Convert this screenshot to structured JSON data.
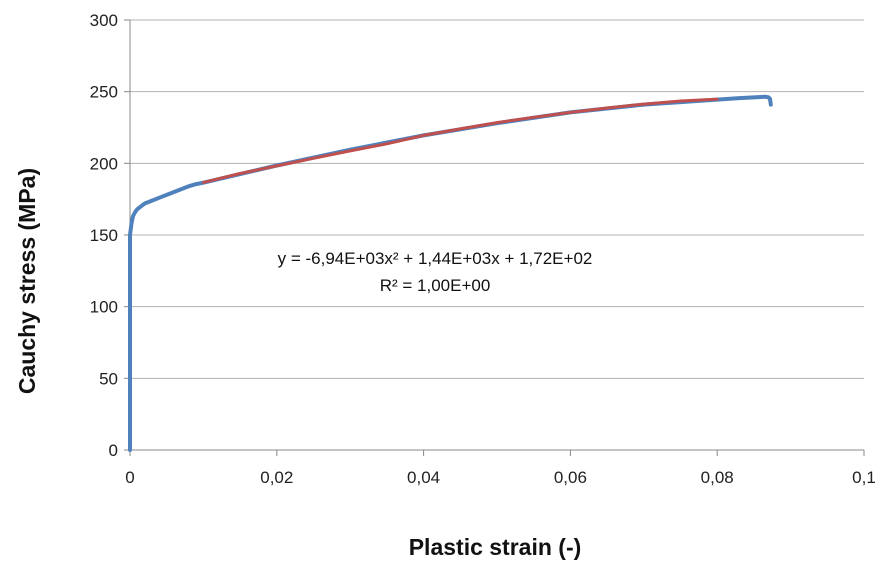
{
  "chart_data": {
    "type": "scatter",
    "title": "",
    "xlabel": "Plastic strain (-)",
    "ylabel": "Cauchy stress (MPa)",
    "xlim": [
      0,
      0.1
    ],
    "ylim": [
      0,
      300
    ],
    "x_ticks": [
      0,
      0.02,
      0.04,
      0.06,
      0.08,
      0.1
    ],
    "x_tick_labels": [
      "0",
      "0,02",
      "0,04",
      "0,06",
      "0,08",
      "0,1"
    ],
    "y_ticks": [
      0,
      50,
      100,
      150,
      200,
      250,
      300
    ],
    "y_tick_labels": [
      "0",
      "50",
      "100",
      "150",
      "200",
      "250",
      "300"
    ],
    "grid": {
      "horizontal": true,
      "vertical": false
    },
    "legend": "none",
    "series": [
      {
        "color": "#4f81bd",
        "x": [
          0,
          0,
          0,
          0,
          0,
          0.0002,
          0.0004,
          0.0007,
          0.001,
          0.0015,
          0.002,
          0.003,
          0.004,
          0.005,
          0.006,
          0.007,
          0.008,
          0.009,
          0.01,
          0.02,
          0.03,
          0.04,
          0.05,
          0.06,
          0.07,
          0.08,
          0.083,
          0.085,
          0.0865,
          0.087,
          0.0872,
          0.0873
        ],
        "y": [
          0,
          40,
          90,
          130,
          150,
          158,
          163,
          166,
          168,
          170,
          172,
          174,
          176,
          178,
          180,
          182,
          184,
          185.5,
          186.5,
          198.5,
          209.5,
          219.5,
          228,
          235.5,
          241,
          244.5,
          245.5,
          246,
          246.5,
          246,
          245,
          241
        ]
      },
      {
        "color": "#c0504d",
        "x": [
          0.01,
          0.015,
          0.02,
          0.025,
          0.03,
          0.035,
          0.04,
          0.045,
          0.05,
          0.055,
          0.06,
          0.065,
          0.07,
          0.075,
          0.08
        ],
        "y": [
          186.7,
          192.9,
          198.2,
          203.5,
          208.7,
          213.6,
          219.5,
          224.0,
          228.4,
          232.1,
          235.5,
          238.6,
          241.3,
          243.5,
          244.8
        ]
      }
    ],
    "annotations": [
      "y = -6,94E+03x² + 1,44E+03x + 1,72E+02",
      "R² = 1,00E+00"
    ]
  }
}
